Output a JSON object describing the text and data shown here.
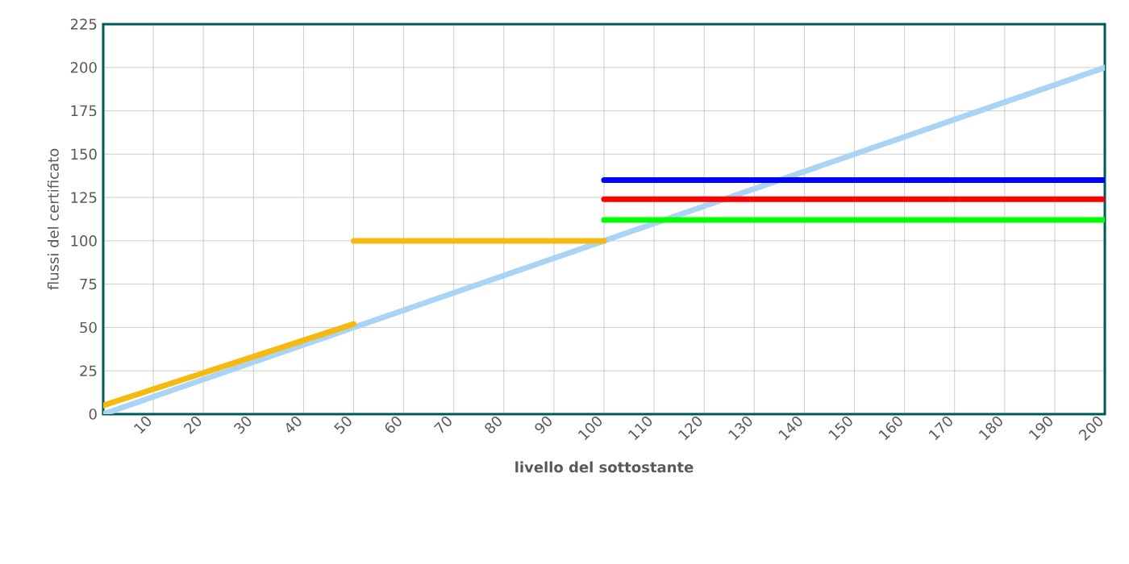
{
  "chart_data": {
    "type": "line",
    "xlabel": "livello del sottostante",
    "ylabel": "flussi del certificato",
    "xlim": [
      0,
      200
    ],
    "ylim": [
      0,
      225
    ],
    "xticks": [
      10,
      20,
      30,
      40,
      50,
      60,
      70,
      80,
      90,
      100,
      110,
      120,
      130,
      140,
      150,
      160,
      170,
      180,
      190,
      200
    ],
    "yticks": [
      0,
      25,
      50,
      75,
      100,
      125,
      150,
      175,
      200,
      225
    ],
    "grid": true,
    "marker": "none",
    "line_style": "solid",
    "series": [
      {
        "color": "#aad4f5",
        "x": [
          0,
          200
        ],
        "values": [
          0,
          200
        ]
      },
      {
        "color": "#f5b90f",
        "x": [
          0,
          50
        ],
        "values": [
          5,
          52
        ]
      },
      {
        "color": "#f5b90f",
        "x": [
          50,
          100
        ],
        "values": [
          100,
          100
        ]
      },
      {
        "color": "#0000ff",
        "x": [
          100,
          200
        ],
        "values": [
          135,
          135
        ]
      },
      {
        "color": "#ff0000",
        "x": [
          100,
          200
        ],
        "values": [
          124,
          124
        ]
      },
      {
        "color": "#00ff00",
        "x": [
          100,
          200
        ],
        "values": [
          112,
          112
        ]
      }
    ]
  }
}
